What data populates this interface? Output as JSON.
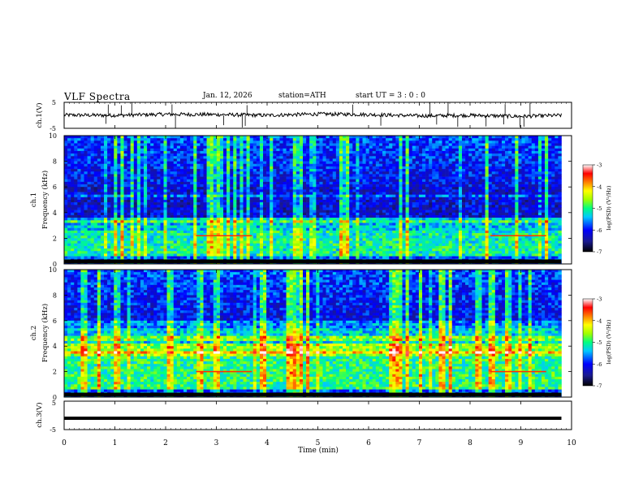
{
  "header": {
    "title": "VLF  Spectra",
    "date": "Jan. 12, 2026",
    "station": "station=ATH",
    "start": "start  UT  =   3  : 0  : 0"
  },
  "chart_data": [
    {
      "type": "line",
      "name": "ch1-waveform",
      "ylabel": "ch.1(V)",
      "ylim": [
        -5,
        5
      ],
      "yticks": [
        "5",
        "-5"
      ],
      "x": [
        0,
        1,
        2,
        3,
        4,
        5,
        6,
        7,
        8,
        9,
        9.8
      ],
      "y": [
        0.1,
        0.0,
        0.4,
        0.3,
        0.0,
        0.5,
        0.3,
        -0.2,
        0.0,
        -0.4,
        0.0
      ]
    },
    {
      "type": "heatmap",
      "name": "ch1-spectrogram",
      "ylabel": "ch.1\nFrequency (kHz)",
      "ylim": [
        0,
        10
      ],
      "yticks": [
        "0",
        "2",
        "4",
        "6",
        "8",
        "10"
      ],
      "xlim": [
        0,
        9.8
      ],
      "colorbar": {
        "label": "log(PSD) (V²/Hz)",
        "range": [
          -7,
          -3
        ],
        "ticks": [
          "-3",
          "-4",
          "-5",
          "-6",
          "-7"
        ]
      },
      "features": [
        {
          "freq_khz": 2.2,
          "t_start": 2.6,
          "t_end": 3.7
        },
        {
          "freq_khz": 2.2,
          "t_start": 8.4,
          "t_end": 9.5
        }
      ]
    },
    {
      "type": "heatmap",
      "name": "ch2-spectrogram",
      "ylabel": "ch.2\nFrequency (kHz)",
      "ylim": [
        0,
        10
      ],
      "yticks": [
        "0",
        "2",
        "4",
        "6",
        "8",
        "10"
      ],
      "xlim": [
        0,
        9.8
      ],
      "colorbar": {
        "label": "log(PSD) (V²/Hz)",
        "range": [
          -7,
          -3
        ],
        "ticks": [
          "-3",
          "-4",
          "-5",
          "-6",
          "-7"
        ]
      },
      "features": [
        {
          "freq_khz": 2.0,
          "t_start": 2.6,
          "t_end": 3.7
        },
        {
          "freq_khz": 2.0,
          "t_start": 8.4,
          "t_end": 9.5
        }
      ]
    },
    {
      "type": "line",
      "name": "ch3-waveform",
      "ylabel": "ch.3(V)",
      "ylim": [
        -5,
        5
      ],
      "yticks": [
        "5",
        "-5"
      ],
      "x": [
        0,
        9.8
      ],
      "y": [
        -1.0,
        -1.0
      ]
    }
  ],
  "xaxis": {
    "label": "Time  (min)",
    "range": [
      0,
      10
    ],
    "ticks": [
      "0",
      "1",
      "2",
      "3",
      "4",
      "5",
      "6",
      "7",
      "8",
      "9",
      "10"
    ]
  }
}
